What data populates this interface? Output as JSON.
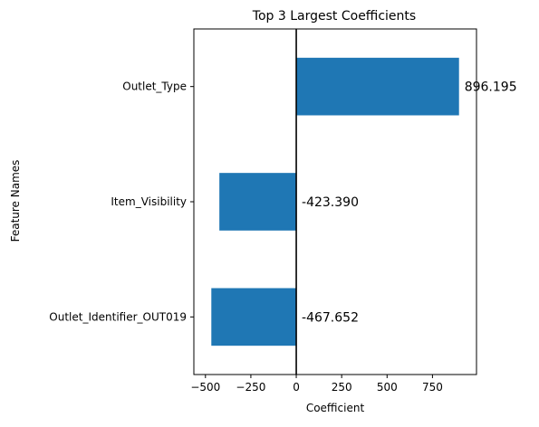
{
  "chart_data": {
    "type": "bar",
    "orientation": "horizontal",
    "title": "Top 3 Largest Coefficients",
    "xlabel": "Coefficient",
    "ylabel": "Feature Names",
    "categories": [
      "Outlet_Type",
      "Item_Visibility",
      "Outlet_Identifier_OUT019"
    ],
    "values": [
      896.195,
      -423.39,
      -467.652
    ],
    "value_labels": [
      "896.195",
      "-423.390",
      "-467.652"
    ],
    "xlim": [
      -563.845,
      992.388
    ],
    "xticks": [
      -500,
      -250,
      0,
      250,
      500,
      750
    ],
    "xtick_labels": [
      "−500",
      "−250",
      "0",
      "250",
      "500",
      "750"
    ],
    "bar_color": "#1f77b4",
    "zero_line": true,
    "grid": false
  }
}
